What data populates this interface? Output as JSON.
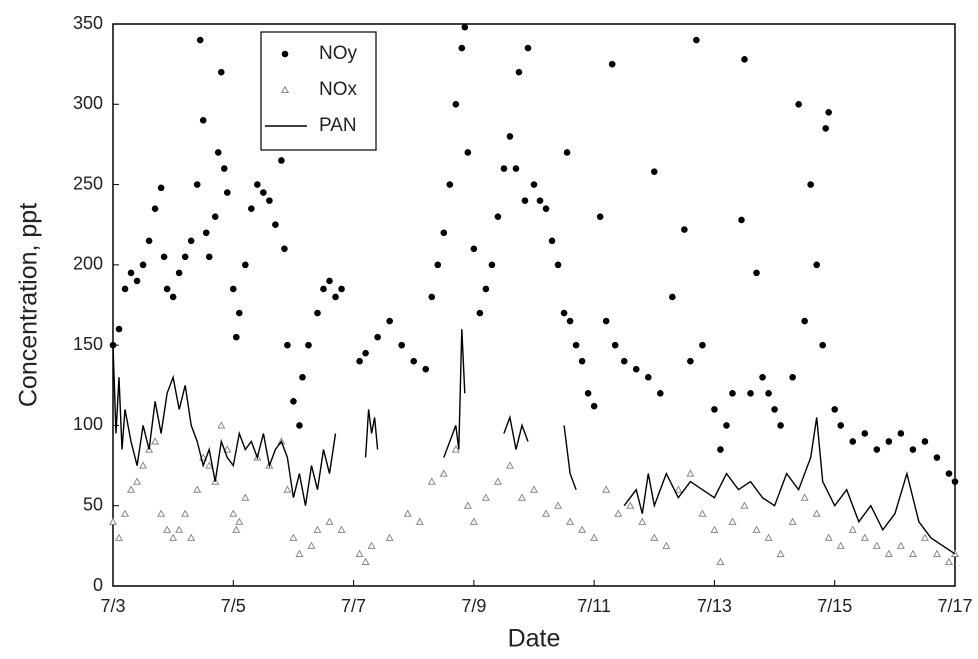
{
  "chart_data": {
    "type": "scatter",
    "x_label": "Date",
    "y_label": "Concentration, ppt",
    "xlim": [
      3,
      17
    ],
    "ylim": [
      0,
      350
    ],
    "xticks": [
      {
        "value": 3,
        "label": "7/3"
      },
      {
        "value": 5,
        "label": "7/5"
      },
      {
        "value": 7,
        "label": "7/7"
      },
      {
        "value": 9,
        "label": "7/9"
      },
      {
        "value": 11,
        "label": "7/11"
      },
      {
        "value": 13,
        "label": "7/13"
      },
      {
        "value": 15,
        "label": "7/15"
      },
      {
        "value": 17,
        "label": "7/17"
      }
    ],
    "yticks": [
      0,
      50,
      100,
      150,
      200,
      250,
      300,
      350
    ],
    "grid": false,
    "legend": "upper left",
    "series": [
      {
        "name": "NOy",
        "style": "dot",
        "color": "#000000",
        "x": [
          3.0,
          3.1,
          3.2,
          3.3,
          3.4,
          3.5,
          3.6,
          3.7,
          3.8,
          3.85,
          3.9,
          4.0,
          4.1,
          4.2,
          4.3,
          4.4,
          4.45,
          4.5,
          4.55,
          4.6,
          4.7,
          4.75,
          4.8,
          4.85,
          4.9,
          5.0,
          5.05,
          5.1,
          5.2,
          5.3,
          5.4,
          5.5,
          5.6,
          5.7,
          5.8,
          5.85,
          5.9,
          6.0,
          6.1,
          6.15,
          6.25,
          6.4,
          6.5,
          6.6,
          6.7,
          6.8,
          7.1,
          7.2,
          7.4,
          7.6,
          7.8,
          8.0,
          8.2,
          8.3,
          8.4,
          8.5,
          8.6,
          8.7,
          8.8,
          8.85,
          8.9,
          9.0,
          9.1,
          9.2,
          9.3,
          9.4,
          9.5,
          9.6,
          9.7,
          9.75,
          9.85,
          9.9,
          10.0,
          10.1,
          10.2,
          10.3,
          10.4,
          10.5,
          10.55,
          10.6,
          10.7,
          10.8,
          10.9,
          11.0,
          11.1,
          11.2,
          11.3,
          11.35,
          11.5,
          11.7,
          11.9,
          12.0,
          12.1,
          12.3,
          12.5,
          12.6,
          12.7,
          12.8,
          13.0,
          13.1,
          13.2,
          13.3,
          13.45,
          13.5,
          13.6,
          13.7,
          13.8,
          13.9,
          14.0,
          14.1,
          14.3,
          14.4,
          14.5,
          14.6,
          14.7,
          14.8,
          14.85,
          14.9,
          15.0,
          15.1,
          15.3,
          15.5,
          15.7,
          15.9,
          16.1,
          16.3,
          16.5,
          16.7,
          16.9,
          17.0
        ],
        "values": [
          150,
          160,
          185,
          195,
          190,
          200,
          215,
          235,
          248,
          205,
          185,
          180,
          195,
          205,
          215,
          250,
          340,
          290,
          220,
          205,
          230,
          270,
          320,
          260,
          245,
          185,
          155,
          170,
          200,
          235,
          250,
          245,
          240,
          225,
          265,
          210,
          150,
          115,
          100,
          130,
          150,
          170,
          185,
          190,
          180,
          185,
          140,
          145,
          155,
          165,
          150,
          140,
          135,
          180,
          200,
          220,
          250,
          300,
          335,
          348,
          270,
          210,
          170,
          185,
          200,
          230,
          260,
          280,
          260,
          320,
          240,
          335,
          250,
          240,
          235,
          215,
          200,
          170,
          270,
          165,
          150,
          140,
          120,
          112,
          230,
          165,
          325,
          150,
          140,
          135,
          130,
          258,
          120,
          180,
          222,
          140,
          340,
          150,
          110,
          85,
          100,
          120,
          228,
          328,
          120,
          195,
          130,
          120,
          110,
          100,
          130,
          300,
          165,
          250,
          200,
          150,
          285,
          295,
          110,
          100,
          90,
          95,
          85,
          90,
          95,
          85,
          90,
          80,
          70,
          65
        ]
      },
      {
        "name": "NOx",
        "style": "triangle",
        "color": "#8a8a8a",
        "x": [
          3.0,
          3.1,
          3.2,
          3.3,
          3.4,
          3.5,
          3.6,
          3.7,
          3.8,
          3.9,
          4.0,
          4.1,
          4.2,
          4.3,
          4.4,
          4.5,
          4.6,
          4.7,
          4.8,
          4.9,
          5.0,
          5.05,
          5.1,
          5.2,
          5.4,
          5.6,
          5.8,
          5.9,
          6.0,
          6.1,
          6.3,
          6.4,
          6.6,
          6.8,
          7.1,
          7.2,
          7.3,
          7.6,
          7.9,
          8.1,
          8.3,
          8.5,
          8.7,
          8.9,
          9.0,
          9.2,
          9.4,
          9.6,
          9.8,
          10.0,
          10.2,
          10.4,
          10.6,
          10.8,
          11.0,
          11.2,
          11.4,
          11.6,
          11.8,
          12.0,
          12.2,
          12.4,
          12.6,
          12.8,
          13.0,
          13.1,
          13.3,
          13.5,
          13.7,
          13.9,
          14.1,
          14.3,
          14.5,
          14.7,
          14.9,
          15.1,
          15.3,
          15.5,
          15.7,
          15.9,
          16.1,
          16.3,
          16.5,
          16.7,
          16.9,
          17.0
        ],
        "values": [
          40,
          30,
          45,
          60,
          65,
          75,
          85,
          90,
          45,
          35,
          30,
          35,
          45,
          30,
          60,
          80,
          75,
          65,
          100,
          85,
          45,
          35,
          40,
          55,
          80,
          75,
          90,
          60,
          30,
          20,
          25,
          35,
          40,
          35,
          20,
          15,
          25,
          30,
          45,
          40,
          65,
          70,
          85,
          50,
          40,
          55,
          65,
          75,
          55,
          60,
          45,
          50,
          40,
          35,
          30,
          60,
          45,
          50,
          40,
          30,
          25,
          60,
          70,
          45,
          35,
          15,
          40,
          50,
          35,
          30,
          20,
          40,
          55,
          45,
          30,
          25,
          35,
          30,
          25,
          20,
          25,
          20,
          30,
          20,
          15,
          20
        ]
      },
      {
        "name": "PAN",
        "style": "line",
        "color": "#000000",
        "x": [
          3.0,
          3.05,
          3.1,
          3.15,
          3.2,
          3.3,
          3.4,
          3.5,
          3.6,
          3.7,
          3.8,
          3.9,
          4.0,
          4.1,
          4.2,
          4.3,
          4.4,
          4.5,
          4.6,
          4.7,
          4.8,
          4.9,
          5.0,
          5.1,
          5.2,
          5.3,
          5.4,
          5.5,
          5.6,
          5.7,
          5.8,
          5.9,
          6.0,
          6.1,
          6.2,
          6.3,
          6.4,
          6.5,
          6.6,
          6.7,
          6.8,
          7.2,
          7.25,
          7.3,
          7.35,
          7.4,
          7.5,
          8.5,
          8.6,
          8.7,
          8.75,
          8.8,
          8.85,
          8.95,
          9.5,
          9.6,
          9.7,
          9.8,
          9.9,
          10.0,
          10.5,
          10.6,
          10.7,
          10.8,
          11.5,
          11.6,
          11.7,
          11.8,
          11.9,
          12.0,
          12.2,
          12.4,
          12.6,
          12.8,
          13.0,
          13.2,
          13.4,
          13.6,
          13.8,
          14.0,
          14.2,
          14.4,
          14.6,
          14.7,
          14.8,
          15.0,
          15.2,
          15.4,
          15.6,
          15.8,
          16.0,
          16.2,
          16.4,
          16.6,
          16.8,
          17.0
        ],
        "values": [
          150,
          95,
          130,
          85,
          110,
          90,
          75,
          100,
          85,
          115,
          95,
          120,
          130,
          110,
          125,
          100,
          90,
          75,
          85,
          65,
          90,
          80,
          75,
          95,
          85,
          90,
          80,
          95,
          75,
          85,
          90,
          80,
          55,
          70,
          50,
          75,
          60,
          85,
          70,
          95,
          null,
          80,
          110,
          95,
          105,
          85,
          null,
          80,
          90,
          100,
          85,
          160,
          120,
          null,
          95,
          105,
          85,
          100,
          90,
          null,
          100,
          70,
          60,
          null,
          50,
          55,
          60,
          45,
          70,
          50,
          70,
          55,
          65,
          60,
          55,
          70,
          60,
          65,
          55,
          50,
          70,
          60,
          80,
          105,
          65,
          50,
          60,
          40,
          50,
          35,
          45,
          70,
          40,
          30,
          25,
          20
        ]
      }
    ]
  }
}
